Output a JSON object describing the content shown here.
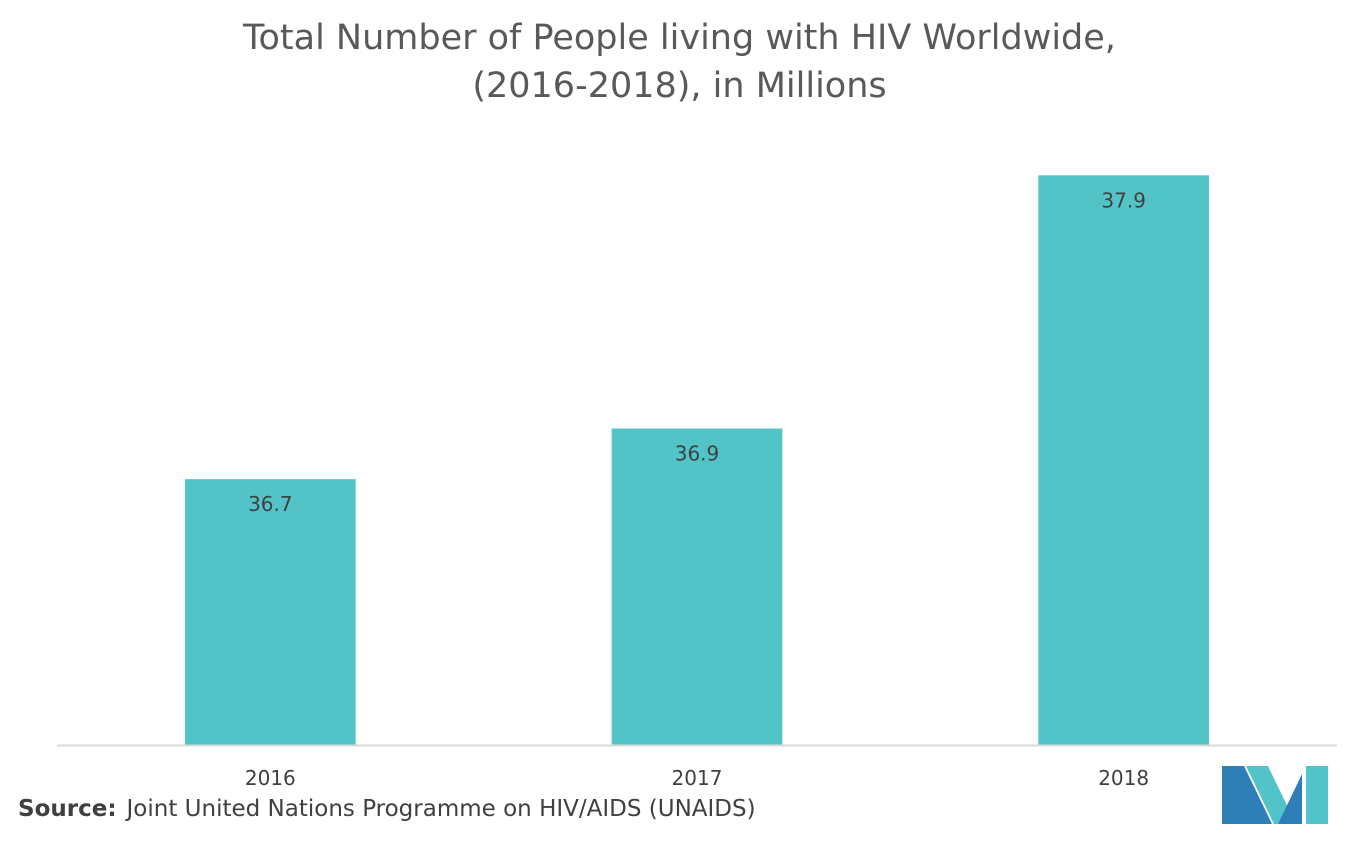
{
  "title_lines": [
    "Total Number of People living with HIV Worldwide,",
    "(2016-2018), in Millions"
  ],
  "source": {
    "label": "Source:",
    "text": "Joint United Nations Programme on HIV/AIDS (UNAIDS)"
  },
  "colors": {
    "bar": "#52C4C8",
    "axis": "#D9D9D9",
    "text": "#404040",
    "logo_dark": "#2E7FB8",
    "logo_light": "#52C4C8"
  },
  "logo": {
    "icon": "company-logo-icon"
  },
  "chart_data": {
    "type": "bar",
    "title": "Total Number of People living with HIV Worldwide, (2016-2018), in Millions",
    "categories": [
      "2016",
      "2017",
      "2018"
    ],
    "values": [
      36.7,
      36.9,
      37.9
    ],
    "value_labels": [
      "36.7",
      "36.9",
      "37.9"
    ],
    "xlabel": "",
    "ylabel": "",
    "ylim": [
      35.65,
      38.0
    ],
    "grid": false,
    "legend": "none"
  }
}
